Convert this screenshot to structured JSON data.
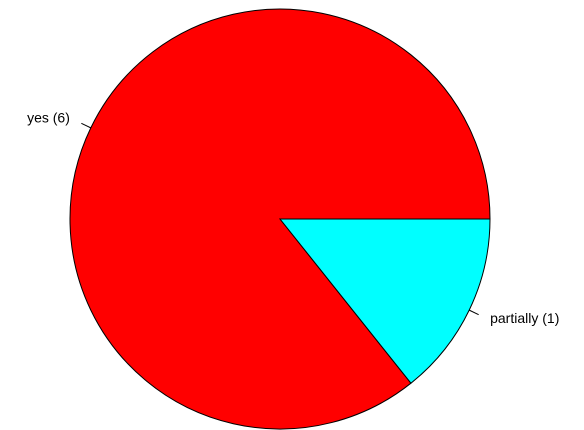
{
  "chart_data": {
    "type": "pie",
    "categories": [
      "yes (6)",
      "partially (1)"
    ],
    "values": [
      6,
      1
    ],
    "colors": [
      "#ff0000",
      "#00ffff"
    ]
  }
}
